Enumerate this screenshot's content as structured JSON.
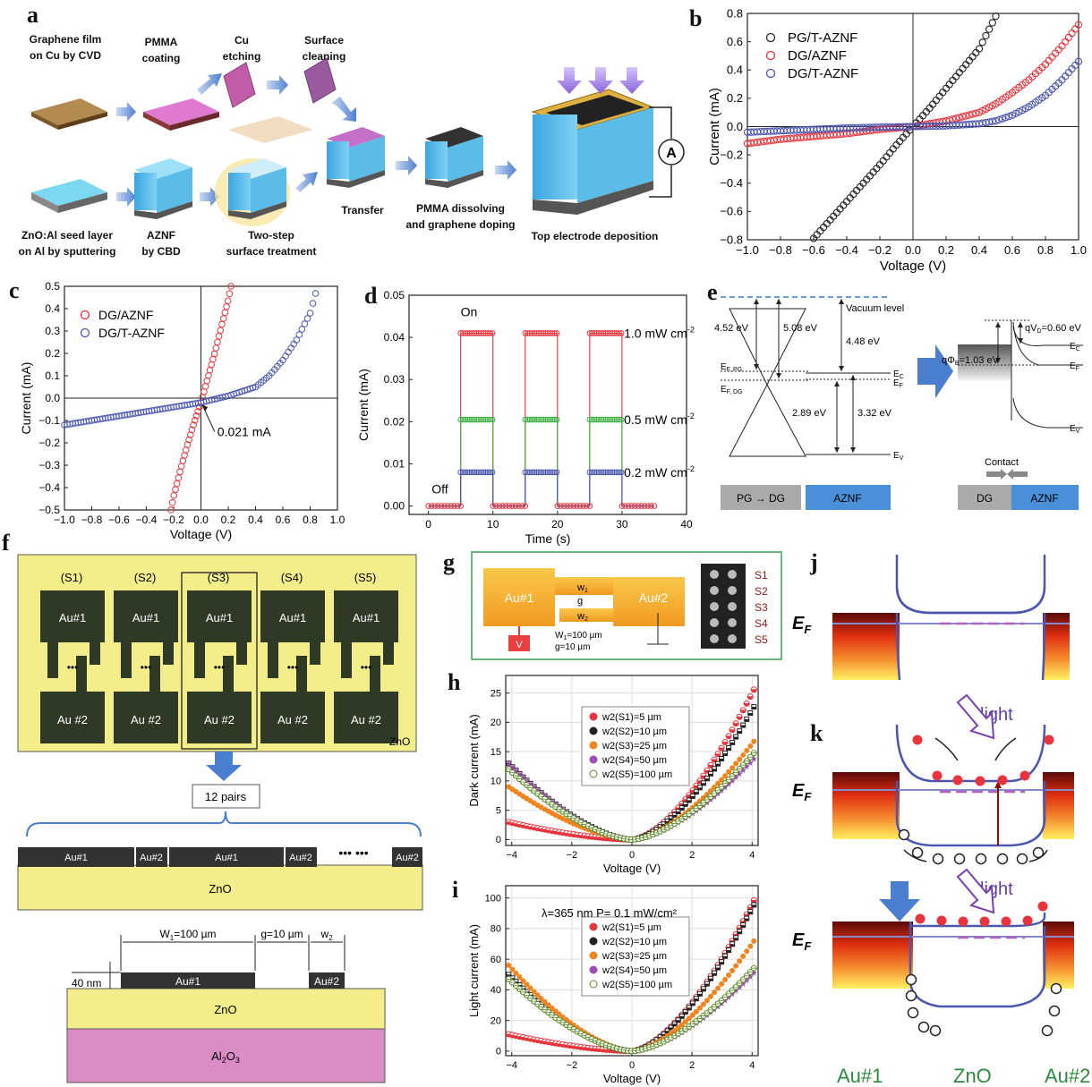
{
  "panel_a": {
    "letter": "a",
    "steps": {
      "graphene": [
        "Graphene film",
        "on Cu by CVD"
      ],
      "pmma": [
        "PMMA",
        "coating"
      ],
      "cu": [
        "Cu",
        "etching"
      ],
      "surface": [
        "Surface",
        "cleaning"
      ],
      "seed": [
        "ZnO:Al seed layer",
        "on Al by sputtering"
      ],
      "aznf": [
        "AZNF",
        "by CBD"
      ],
      "twostep": [
        "Two-step",
        "surface treatment"
      ],
      "transfer": "Transfer",
      "dissolve": [
        "PMMA dissolving",
        "and graphene doping"
      ],
      "topelec": "Top electrode deposition",
      "ammeter": "A"
    }
  },
  "panel_e": {
    "letter": "e",
    "vacuum": "Vacuum level",
    "e452": "4.52 eV",
    "e508": "5.08 eV",
    "e448": "4.48 eV",
    "e289": "2.89 eV",
    "e332": "3.32 eV",
    "efpg": "E",
    "efpg_sub": "F, PG",
    "efdg": "E",
    "efdg_sub": "F, DG",
    "ec": "E",
    "ec_sub": "C",
    "ef": "E",
    "ef_sub": "F",
    "ev": "E",
    "ev_sub": "V",
    "qphib": "qΦ",
    "qphib_sub": "B",
    "qphib_val": "=1.03 eV",
    "qvd": "qV",
    "qvd_sub": "D",
    "qvd_val": "=0.60 eV",
    "contact": "Contact",
    "pgdg": "PG → DG",
    "aznf": "AZNF",
    "dg": "DG",
    "aznf2": "AZNF"
  },
  "panel_f": {
    "letter": "f",
    "pairs": [
      "(S1)",
      "(S2)",
      "(S3)",
      "(S4)",
      "(S5)"
    ],
    "au1": "Au#1",
    "au2": "Au #2",
    "zno": "ZnO",
    "twelve": "12 pairs",
    "strip": [
      "Au#1",
      "Au#2",
      "Au#1",
      "Au#2",
      "Au#2"
    ],
    "dots": "•••",
    "cross_w1": "W",
    "cross_w1_sub": "1",
    "cross_w1_val": "=100 µm",
    "cross_g": "g=10 µm",
    "cross_w2": "w",
    "cross_w2_sub": "2",
    "cross_40": "40 nm",
    "cross_au1": "Au#1",
    "cross_au2": "Au#2",
    "cross_zno": "ZnO",
    "cross_sub": "Al",
    "cross_sub_2": "2",
    "cross_sub_o": "O",
    "cross_sub_3": "3"
  },
  "panel_g": {
    "letter": "g",
    "au1": "Au#1",
    "au2": "Au#2",
    "w1": "w",
    "w1_sub": "1",
    "g": "g",
    "w2": "w",
    "w2_sub": "2",
    "W1": "W",
    "W1_sub": "1",
    "W1_val": "=100 µm",
    "gval": "g=10 µm",
    "V": "V",
    "samples": [
      "S1",
      "S2",
      "S3",
      "S4",
      "S5"
    ]
  },
  "panel_j": {
    "letter": "j",
    "ef": "E",
    "ef_sub": "F"
  },
  "panel_k": {
    "letter": "k",
    "ef": "E",
    "ef_sub": "F",
    "light": "light",
    "light2": "light",
    "ef2": "E",
    "ef2_sub": "F"
  },
  "bottom_labels": {
    "au1": "Au#1",
    "zno": "ZnO",
    "au2": "Au#2"
  },
  "colors": {
    "blue": "#4a56b0",
    "red": "#e8343c",
    "purple": "#7a3fb0",
    "green": "#2e8b3e",
    "orange": "#f2841e"
  },
  "chart_data": [
    {
      "id": "b",
      "letter": "b",
      "type": "scatter",
      "xlabel": "Voltage (V)",
      "ylabel": "Current (mA)",
      "xlim": [
        -1.0,
        1.0
      ],
      "ylim": [
        -0.8,
        0.8
      ],
      "xticks": [
        "-1.0",
        "-0.8",
        "-0.6",
        "-0.4",
        "-0.2",
        "0.0",
        "0.2",
        "0.4",
        "0.6",
        "0.8",
        "1.0"
      ],
      "yticks": [
        "-0.8",
        "-0.6",
        "-0.4",
        "-0.2",
        "0.0",
        "0.2",
        "0.4",
        "0.6",
        "0.8"
      ],
      "legend": "top-left",
      "series": [
        {
          "name": "PG/T-AZNF",
          "color": "#222222",
          "x": [
            -0.6,
            -0.5,
            -0.4,
            -0.3,
            -0.2,
            -0.1,
            0.0,
            0.1,
            0.2,
            0.3,
            0.4,
            0.5
          ],
          "y": [
            -0.79,
            -0.66,
            -0.53,
            -0.4,
            -0.27,
            -0.13,
            0.0,
            0.13,
            0.27,
            0.41,
            0.55,
            0.78
          ]
        },
        {
          "name": "DG/AZNF",
          "color": "#e8343c",
          "x": [
            -1.0,
            -0.8,
            -0.6,
            -0.4,
            -0.2,
            0.0,
            0.2,
            0.4,
            0.5,
            0.6,
            0.7,
            0.8,
            0.9,
            1.0
          ],
          "y": [
            -0.12,
            -0.09,
            -0.07,
            -0.05,
            -0.02,
            0.0,
            0.04,
            0.1,
            0.16,
            0.24,
            0.33,
            0.44,
            0.57,
            0.72
          ]
        },
        {
          "name": "DG/T-AZNF",
          "color": "#4a56b0",
          "x": [
            -1.0,
            -0.8,
            -0.6,
            -0.4,
            -0.2,
            0.0,
            0.2,
            0.4,
            0.5,
            0.6,
            0.7,
            0.8,
            0.9,
            1.0
          ],
          "y": [
            -0.04,
            -0.03,
            -0.02,
            -0.01,
            -0.005,
            0.0,
            0.005,
            0.02,
            0.04,
            0.08,
            0.14,
            0.22,
            0.33,
            0.46
          ]
        }
      ]
    },
    {
      "id": "c",
      "letter": "c",
      "type": "scatter",
      "xlabel": "Voltage (V)",
      "ylabel": "Current (mA)",
      "xlim": [
        -1.0,
        1.0
      ],
      "ylim": [
        -0.5,
        0.5
      ],
      "xticks": [
        "-1.0",
        "-0.8",
        "-0.6",
        "-0.4",
        "-0.2",
        "0.0",
        "0.2",
        "0.4",
        "0.6",
        "0.8",
        "1.0"
      ],
      "yticks": [
        "-0.5",
        "-0.4",
        "-0.3",
        "-0.2",
        "-0.1",
        "0.0",
        "0.1",
        "0.2",
        "0.3",
        "0.4",
        "0.5"
      ],
      "legend": "top-left",
      "annotation": "0.021 mA",
      "series": [
        {
          "name": "DG/AZNF",
          "color": "#e8343c",
          "x": [
            -0.22,
            -0.2,
            -0.15,
            -0.1,
            -0.05,
            0.0,
            0.05,
            0.1,
            0.15,
            0.2,
            0.22
          ],
          "y": [
            -0.5,
            -0.44,
            -0.32,
            -0.21,
            -0.11,
            -0.02,
            0.09,
            0.2,
            0.32,
            0.44,
            0.5
          ]
        },
        {
          "name": "DG/T-AZNF",
          "color": "#4a56b0",
          "x": [
            -1.0,
            -0.8,
            -0.6,
            -0.4,
            -0.2,
            0.0,
            0.2,
            0.4,
            0.5,
            0.6,
            0.7,
            0.8,
            0.85
          ],
          "y": [
            -0.12,
            -0.1,
            -0.08,
            -0.06,
            -0.04,
            -0.02,
            0.01,
            0.05,
            0.1,
            0.17,
            0.26,
            0.38,
            0.49
          ]
        }
      ]
    },
    {
      "id": "d",
      "letter": "d",
      "type": "line",
      "xlabel": "Time (s)",
      "ylabel": "Current (mA)",
      "xlim": [
        -3,
        40
      ],
      "ylim": [
        -0.002,
        0.05
      ],
      "xticks": [
        "0",
        "10",
        "20",
        "30",
        "40"
      ],
      "yticks": [
        "0.00",
        "0.01",
        "0.02",
        "0.03",
        "0.04",
        "0.05"
      ],
      "on_label": "On",
      "off_label": "Off",
      "series": [
        {
          "name": "1.0 mW cm⁻²",
          "label": "1.0 mW cm",
          "sup": "-2",
          "color": "#e8343c",
          "on_value": 0.041
        },
        {
          "name": "0.5 mW cm⁻²",
          "label": "0.5 mW cm",
          "sup": "-2",
          "color": "#3cb043",
          "on_value": 0.0205
        },
        {
          "name": "0.2 mW cm⁻²",
          "label": "0.2 mW cm",
          "sup": "-2",
          "color": "#4a56b0",
          "on_value": 0.008
        }
      ],
      "on_periods": [
        [
          5,
          10
        ],
        [
          15,
          20
        ],
        [
          25,
          30
        ]
      ],
      "t_end": 35
    },
    {
      "id": "h",
      "letter": "h",
      "type": "scatter",
      "xlabel": "Voltage (V)",
      "ylabel": "Dark current (mA)",
      "xlim": [
        -4.2,
        4.2
      ],
      "ylim": [
        -1,
        28
      ],
      "xticks": [
        "-4",
        "-2",
        "0",
        "2",
        "4"
      ],
      "yticks": [
        "0",
        "5",
        "10",
        "15",
        "20",
        "25"
      ],
      "legend": "top-left",
      "series": [
        {
          "name": "w2(S1)=5 µm",
          "color": "#e8343c",
          "marker": "half",
          "left": 3,
          "right": 26
        },
        {
          "name": "w2(S2)=10 µm",
          "color": "#222222",
          "marker": "square-half",
          "left": 13,
          "right": 23
        },
        {
          "name": "w2(S3)=25 µm",
          "color": "#f2841e",
          "marker": "circle",
          "left": 9,
          "right": 17
        },
        {
          "name": "w2(S4)=50 µm",
          "color": "#a04ab8",
          "marker": "star",
          "left": 13,
          "right": 14
        },
        {
          "name": "w2(S5)=100 µm",
          "color": "#5b8c2a",
          "marker": "half-open",
          "left": 12,
          "right": 15
        }
      ]
    },
    {
      "id": "i",
      "letter": "i",
      "type": "scatter",
      "xlabel": "Voltage (V)",
      "ylabel": "Light current (mA)",
      "xlim": [
        -4.2,
        4.2
      ],
      "ylim": [
        -3,
        108
      ],
      "xticks": [
        "-4",
        "-2",
        "0",
        "2",
        "4"
      ],
      "yticks": [
        "0",
        "20",
        "40",
        "60",
        "80",
        "100"
      ],
      "title_note": "λ=365 nm    P= 0.1 mW/cm²",
      "legend": "top-left",
      "series": [
        {
          "name": "w2(S1)=5 µm",
          "color": "#e8343c",
          "marker": "half",
          "left": 11,
          "right": 100
        },
        {
          "name": "w2(S2)=10 µm",
          "color": "#222222",
          "marker": "square-half",
          "left": 50,
          "right": 97
        },
        {
          "name": "w2(S3)=25 µm",
          "color": "#f2841e",
          "marker": "circle",
          "left": 56,
          "right": 73
        },
        {
          "name": "w2(S4)=50 µm",
          "color": "#a04ab8",
          "marker": "star",
          "left": 48,
          "right": 52
        },
        {
          "name": "w2(S5)=100 µm",
          "color": "#5b8c2a",
          "marker": "half-open",
          "left": 47,
          "right": 55
        }
      ]
    }
  ]
}
